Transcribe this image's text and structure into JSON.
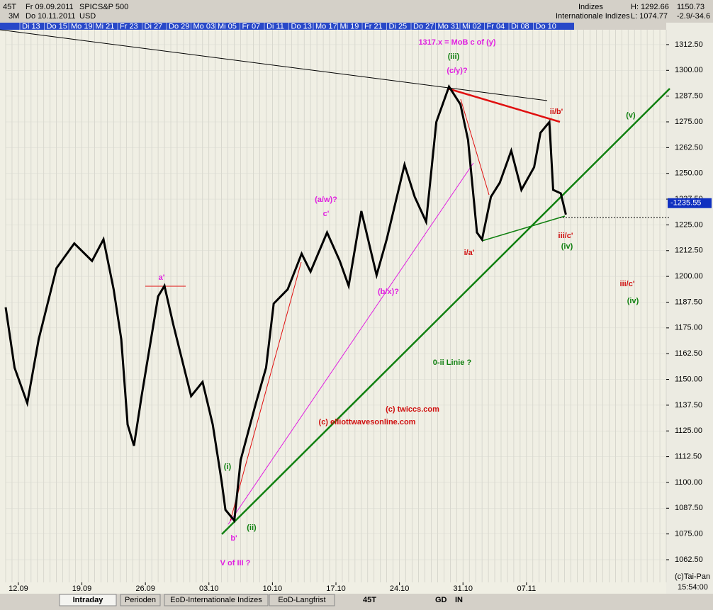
{
  "header": {
    "left": [
      "45T",
      "Fr 09.09.2011",
      "SPIC",
      "S&P 500",
      "3M",
      "Do 10.11.2011",
      "USD"
    ],
    "right": [
      "Indizes",
      "Internationale Indizes",
      "H: 1292.66",
      "L: 1074.77",
      "1150.73",
      "-2.9/-34.6"
    ]
  },
  "date_strip": [
    "Di 13",
    "Do 15",
    "Mo 19",
    "Mi 21",
    "Fr 23",
    "Di 27",
    "Do 29",
    "Mo 03",
    "Mi 05",
    "Fr 07",
    "Di 11",
    "Do 13",
    "Mo 17",
    "Mi 19",
    "Fr 21",
    "Di 25",
    "Do 27",
    "Mo 31",
    "Mi 02",
    "Fr 04",
    "Di 08",
    "Do 10"
  ],
  "chart_data": {
    "type": "line",
    "x": [
      0,
      0.7,
      1.7,
      2.6,
      4.0,
      5.4,
      6.8,
      7.7,
      8.5,
      9.1,
      9.6,
      10.1,
      10.7,
      12.0,
      12.5,
      13.2,
      14.6,
      15.5,
      16.3,
      17.0,
      17.3,
      18.0,
      18.5,
      19.7,
      20.5,
      21.1,
      22.2,
      23.3,
      24.0,
      25.3,
      26.3,
      27.0,
      28.0,
      29.2,
      30.0,
      31.4,
      32.2,
      33.1,
      33.9,
      34.9,
      35.8,
      36.4,
      37.1,
      37.5,
      38.2,
      38.9,
      39.8,
      40.6,
      41.6,
      42.1,
      42.8,
      43.1,
      43.7,
      44.1
    ],
    "values": [
      1185,
      1155.7,
      1138.5,
      1169.5,
      1204,
      1216,
      1207.5,
      1218,
      1193.7,
      1169.5,
      1128.1,
      1117.8,
      1141.9,
      1190.3,
      1195.4,
      1176.5,
      1141.9,
      1148.8,
      1128.1,
      1100.5,
      1086.7,
      1081.5,
      1110.9,
      1138.5,
      1155.7,
      1186.8,
      1193.7,
      1211,
      1202.3,
      1221.3,
      1207.5,
      1195.4,
      1231.7,
      1200.6,
      1218.1,
      1254.2,
      1238.6,
      1226.5,
      1274.9,
      1292.1,
      1283.5,
      1266.2,
      1221.3,
      1217.9,
      1238.6,
      1245.5,
      1261,
      1242,
      1253,
      1269.7,
      1274.9,
      1242,
      1240.3,
      1230
    ],
    "color": "#000000",
    "xlim": [
      0,
      52
    ],
    "xticks": [
      {
        "value": 1,
        "label": "12.09"
      },
      {
        "value": 6,
        "label": "19.09"
      },
      {
        "value": 11,
        "label": "26.09"
      },
      {
        "value": 16,
        "label": "03.10"
      },
      {
        "value": 21,
        "label": "10.10"
      },
      {
        "value": 26,
        "label": "17.10"
      },
      {
        "value": 31,
        "label": "24.10"
      },
      {
        "value": 36,
        "label": "31.10"
      },
      {
        "value": 41,
        "label": "07.11"
      }
    ],
    "ylim": [
      1051.5,
      1319.7
    ],
    "yticks": [
      {
        "value": 1062.5,
        "label": "1062.50"
      },
      {
        "value": 1075,
        "label": "1075.00"
      },
      {
        "value": 1087.5,
        "label": "1087.50"
      },
      {
        "value": 1100,
        "label": "1100.00"
      },
      {
        "value": 1112.5,
        "label": "1112.50"
      },
      {
        "value": 1125,
        "label": "1125.00"
      },
      {
        "value": 1137.5,
        "label": "1137.50"
      },
      {
        "value": 1150,
        "label": "1150.00"
      },
      {
        "value": 1162.5,
        "label": "1162.50"
      },
      {
        "value": 1175,
        "label": "1175.00"
      },
      {
        "value": 1187.5,
        "label": "1187.50"
      },
      {
        "value": 1200,
        "label": "1200.00"
      },
      {
        "value": 1212.5,
        "label": "1212.50"
      },
      {
        "value": 1225,
        "label": "1225.00"
      },
      {
        "value": 1237.5,
        "label": "1237.50"
      },
      {
        "value": 1250,
        "label": "1250.00"
      },
      {
        "value": 1262.5,
        "label": "1262.50"
      },
      {
        "value": 1275,
        "label": "1275.00"
      },
      {
        "value": 1287.5,
        "label": "1287.50"
      },
      {
        "value": 1300,
        "label": "1300.00"
      },
      {
        "value": 1312.5,
        "label": "1312.50"
      }
    ],
    "last_price": {
      "value": 1235.55,
      "label": "-1235.55"
    },
    "annotations": [
      {
        "text": "1317.x = MoB c of (y)",
        "color": "#e020e0"
      },
      {
        "text": "(iii)",
        "color": "#108010"
      },
      {
        "text": "(c/y)?",
        "color": "#e020e0"
      },
      {
        "text": "ii/b'",
        "color": "#d01010"
      },
      {
        "text": "(v)",
        "color": "#108010"
      },
      {
        "text": "(a/w)?",
        "color": "#e020e0"
      },
      {
        "text": "c'",
        "color": "#e020e0"
      },
      {
        "text": "iii/c'",
        "color": "#d01010"
      },
      {
        "text": "(iv)",
        "color": "#108010"
      },
      {
        "text": "i/a'",
        "color": "#d01010"
      },
      {
        "text": "a'",
        "color": "#e020e0"
      },
      {
        "text": "iii/c'",
        "color": "#d01010"
      },
      {
        "text": "(iv)",
        "color": "#108010"
      },
      {
        "text": "(b/x)?",
        "color": "#e020e0"
      },
      {
        "text": "0-ii Linie ?",
        "color": "#108010"
      },
      {
        "text": "(c) twiccs.com",
        "color": "#d01010"
      },
      {
        "text": "(c) elliottwavesonline.com",
        "color": "#d01010"
      },
      {
        "text": "(i)",
        "color": "#108010"
      },
      {
        "text": "b'",
        "color": "#e020e0"
      },
      {
        "text": "(ii)",
        "color": "#108010"
      },
      {
        "text": "V of III ?",
        "color": "#e020e0"
      }
    ]
  },
  "footer": {
    "tabs": [
      "Intraday",
      "Perioden",
      "EoD-Internationale Indizes",
      "EoD-Langfrist"
    ],
    "tools": [
      "45T",
      "GD",
      "IN"
    ],
    "credit": "(c)Tai-Pan",
    "time": "15:54:00"
  }
}
